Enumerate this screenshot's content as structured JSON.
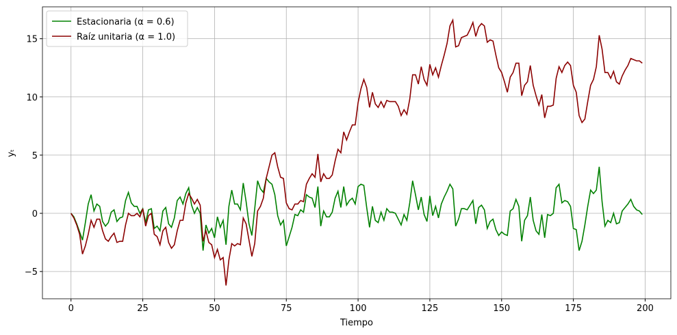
{
  "chart_data": {
    "type": "line",
    "xlabel": "Tiempo",
    "ylabel": "yₜ",
    "x": [
      0,
      1,
      2,
      3,
      4,
      5,
      6,
      7,
      8,
      9,
      10,
      11,
      12,
      13,
      14,
      15,
      16,
      17,
      18,
      19,
      20,
      21,
      22,
      23,
      24,
      25,
      26,
      27,
      28,
      29,
      30,
      31,
      32,
      33,
      34,
      35,
      36,
      37,
      38,
      39,
      40,
      41,
      42,
      43,
      44,
      45,
      46,
      47,
      48,
      49,
      50,
      51,
      52,
      53,
      54,
      55,
      56,
      57,
      58,
      59,
      60,
      61,
      62,
      63,
      64,
      65,
      66,
      67,
      68,
      69,
      70,
      71,
      72,
      73,
      74,
      75,
      76,
      77,
      78,
      79,
      80,
      81,
      82,
      83,
      84,
      85,
      86,
      87,
      88,
      89,
      90,
      91,
      92,
      93,
      94,
      95,
      96,
      97,
      98,
      99,
      100,
      101,
      102,
      103,
      104,
      105,
      106,
      107,
      108,
      109,
      110,
      111,
      112,
      113,
      114,
      115,
      116,
      117,
      118,
      119,
      120,
      121,
      122,
      123,
      124,
      125,
      126,
      127,
      128,
      129,
      130,
      131,
      132,
      133,
      134,
      135,
      136,
      137,
      138,
      139,
      140,
      141,
      142,
      143,
      144,
      145,
      146,
      147,
      148,
      149,
      150,
      151,
      152,
      153,
      154,
      155,
      156,
      157,
      158,
      159,
      160,
      161,
      162,
      163,
      164,
      165,
      166,
      167,
      168,
      169,
      170,
      171,
      172,
      173,
      174,
      175,
      176,
      177,
      178,
      179,
      180,
      181,
      182,
      183,
      184,
      185,
      186,
      187,
      188,
      189,
      190,
      191,
      192,
      193,
      194,
      195,
      196,
      197,
      198,
      199
    ],
    "series": [
      {
        "name": "Estacionaria (α = 0.6)",
        "color": "#008000",
        "values": [
          0,
          -0.3,
          -0.9,
          -1.6,
          -2.3,
          -0.8,
          0.8,
          1.6,
          0.2,
          0.8,
          0.6,
          -0.7,
          -1.1,
          -0.8,
          0.1,
          0.3,
          -0.7,
          -0.4,
          -0.3,
          1.1,
          1.8,
          0.9,
          0.6,
          0.6,
          0.0,
          0.4,
          -0.8,
          0.3,
          0.4,
          -1.3,
          -1.1,
          -1.5,
          0.2,
          0.5,
          -0.9,
          -1.2,
          -0.4,
          1.1,
          1.4,
          0.8,
          1.7,
          2.2,
          0.7,
          0.0,
          0.5,
          0.0,
          -3.2,
          -1.0,
          -1.7,
          -1.3,
          -2.1,
          -0.3,
          -1.2,
          -0.6,
          -2.7,
          0.6,
          2.0,
          0.8,
          0.8,
          0.3,
          2.6,
          1.0,
          -0.9,
          -1.9,
          0.4,
          2.8,
          2.1,
          1.8,
          3.0,
          2.7,
          2.5,
          1.6,
          -0.2,
          -1.0,
          -0.6,
          -2.8,
          -2.0,
          -1.2,
          -0.1,
          -0.2,
          0.3,
          0.1,
          1.6,
          1.4,
          1.3,
          0.5,
          2.3,
          -1.1,
          0.2,
          -0.3,
          -0.3,
          0.1,
          1.3,
          1.9,
          0.5,
          2.3,
          0.7,
          1.1,
          1.3,
          0.8,
          2.3,
          2.5,
          2.4,
          0.5,
          -1.2,
          0.6,
          -0.6,
          -0.8,
          0.1,
          -0.6,
          0.4,
          0.1,
          0.1,
          0.0,
          -0.5,
          -1.0,
          -0.1,
          -0.6,
          0.9,
          2.8,
          1.6,
          0.3,
          1.4,
          -0.1,
          -0.7,
          1.5,
          -0.2,
          0.6,
          -0.4,
          0.8,
          1.4,
          1.9,
          2.5,
          2.1,
          -1.1,
          -0.5,
          0.4,
          0.4,
          0.3,
          0.7,
          1.1,
          -0.9,
          0.5,
          0.7,
          0.3,
          -1.3,
          -0.7,
          -0.5,
          -1.4,
          -1.9,
          -1.6,
          -1.8,
          -1.9,
          0.2,
          0.4,
          1.2,
          0.6,
          -2.4,
          -0.6,
          -0.2,
          1.4,
          -0.6,
          -1.5,
          -1.8,
          -0.1,
          -2.1,
          -0.1,
          -0.2,
          0.0,
          2.2,
          2.5,
          0.9,
          1.1,
          1.0,
          0.6,
          -1.3,
          -1.4,
          -3.2,
          -2.4,
          -1.0,
          0.6,
          2.0,
          1.7,
          2.0,
          4.0,
          1.0,
          -1.1,
          -0.6,
          -0.8,
          0.0,
          -0.9,
          -0.8,
          0.2,
          0.5,
          0.8,
          1.2,
          0.6,
          0.3,
          0.2,
          -0.1
        ]
      },
      {
        "name": "Raíz unitaria (α = 1.0)",
        "color": "#8b0000",
        "values": [
          0,
          -0.4,
          -1.0,
          -1.8,
          -3.5,
          -2.8,
          -1.8,
          -0.6,
          -1.2,
          -0.5,
          -0.5,
          -1.5,
          -2.2,
          -2.4,
          -2.0,
          -1.7,
          -2.5,
          -2.4,
          -2.4,
          -1.0,
          0.0,
          -0.2,
          -0.2,
          0.0,
          -0.3,
          0.4,
          -1.1,
          -0.2,
          0.0,
          -1.8,
          -2.0,
          -2.7,
          -1.5,
          -1.2,
          -2.5,
          -3.0,
          -2.7,
          -1.5,
          -0.6,
          -0.6,
          0.9,
          1.7,
          1.3,
          0.8,
          1.2,
          0.7,
          -2.4,
          -1.5,
          -2.5,
          -2.7,
          -3.8,
          -3.1,
          -4.0,
          -3.8,
          -6.2,
          -4.0,
          -2.6,
          -2.8,
          -2.6,
          -2.7,
          -0.4,
          -0.9,
          -2.3,
          -3.7,
          -2.6,
          0.2,
          0.6,
          1.3,
          3.0,
          4.0,
          5.0,
          5.2,
          4.0,
          3.1,
          3.0,
          0.9,
          0.4,
          0.3,
          0.8,
          0.8,
          1.1,
          1.0,
          2.5,
          3.0,
          3.4,
          3.1,
          5.1,
          2.7,
          3.4,
          3.0,
          3.0,
          3.3,
          4.5,
          5.5,
          5.2,
          7.0,
          6.3,
          7.0,
          7.6,
          7.6,
          9.5,
          10.7,
          11.5,
          10.8,
          9.1,
          10.4,
          9.4,
          9.1,
          9.6,
          9.1,
          9.7,
          9.6,
          9.6,
          9.6,
          9.2,
          8.4,
          8.9,
          8.5,
          9.8,
          11.9,
          11.9,
          11.1,
          12.6,
          11.5,
          11.0,
          12.8,
          11.9,
          12.5,
          11.7,
          12.7,
          13.6,
          14.6,
          16.1,
          16.6,
          14.3,
          14.4,
          15.1,
          15.2,
          15.3,
          15.8,
          16.4,
          15.2,
          16.0,
          16.3,
          16.1,
          14.7,
          14.9,
          14.8,
          13.6,
          12.5,
          12.1,
          11.3,
          10.4,
          11.7,
          12.1,
          12.9,
          12.9,
          10.1,
          11.0,
          11.3,
          12.7,
          11.0,
          10.1,
          9.3,
          10.2,
          8.2,
          9.2,
          9.2,
          9.3,
          11.6,
          12.6,
          12.1,
          12.7,
          13.0,
          12.7,
          11.0,
          10.4,
          8.4,
          7.8,
          8.1,
          9.6,
          11.0,
          11.5,
          12.6,
          15.3,
          14.1,
          12.1,
          12.1,
          11.6,
          12.2,
          11.3,
          11.1,
          11.8,
          12.3,
          12.7,
          13.3,
          13.2,
          13.1,
          13.1,
          12.9
        ]
      }
    ],
    "xlim": [
      -9.95,
      208.95
    ],
    "ylim": [
      -7.34,
      17.74
    ],
    "xticks": [
      0,
      25,
      50,
      75,
      100,
      125,
      150,
      175,
      200
    ],
    "yticks": [
      {
        "value": -5,
        "label": "−5"
      },
      0,
      5,
      10,
      15
    ],
    "grid": true,
    "legend": "upper left"
  }
}
